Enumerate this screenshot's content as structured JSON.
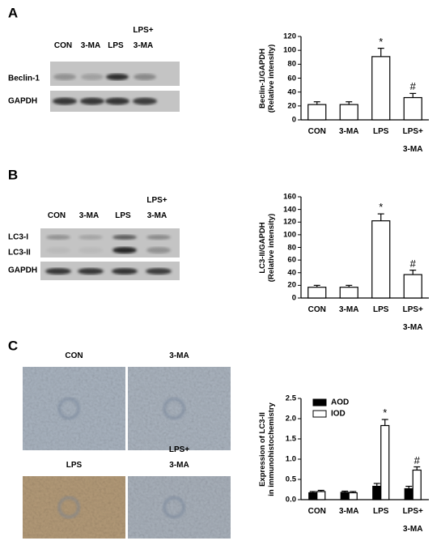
{
  "panels": [
    {
      "label": "A",
      "blot": {
        "lanes": [
          "CON",
          "3-MA",
          "LPS",
          "LPS+\n3-MA"
        ],
        "rows": [
          "Beclin-1",
          "GAPDH"
        ]
      }
    },
    {
      "label": "B",
      "blot": {
        "lanes": [
          "CON",
          "3-MA",
          "LPS",
          "LPS+\n3-MA"
        ],
        "rows": [
          "LC3-I",
          "LC3-II",
          "GAPDH"
        ]
      }
    },
    {
      "label": "C",
      "images": [
        "CON",
        "3-MA",
        "LPS",
        "LPS+\n3-MA"
      ]
    }
  ],
  "chart_data": [
    {
      "type": "bar",
      "y_label": "Beclin-1/GAPDH\n(Relative intensity)",
      "categories": [
        "CON",
        "3-MA",
        "LPS",
        "LPS+\n3-MA"
      ],
      "values": [
        22,
        22,
        91,
        32
      ],
      "errors": [
        4,
        4,
        12,
        6
      ],
      "annotations": [
        null,
        null,
        "*",
        "#"
      ],
      "color": "#ffffff",
      "edge_color": "#000000",
      "ylim": [
        0,
        120
      ],
      "yticks": [
        0,
        20,
        40,
        60,
        80,
        100,
        120
      ],
      "grid": false
    },
    {
      "type": "bar",
      "y_label": "LC3-II/GAPDH\n(Relative intensity)",
      "categories": [
        "CON",
        "3-MA",
        "LPS",
        "LPS+\n3-MA"
      ],
      "values": [
        17,
        17,
        122,
        37
      ],
      "errors": [
        3,
        3,
        11,
        7
      ],
      "annotations": [
        null,
        null,
        "*",
        "#"
      ],
      "color": "#ffffff",
      "edge_color": "#000000",
      "ylim": [
        0,
        160
      ],
      "yticks": [
        0,
        20,
        40,
        60,
        80,
        100,
        120,
        140,
        160
      ],
      "grid": false
    },
    {
      "type": "bar",
      "y_label": "Expression of LC3-II\nin immunohistochemistry",
      "categories": [
        "CON",
        "3-MA",
        "LPS",
        "LPS+\n3-MA"
      ],
      "series": [
        {
          "name": "AOD",
          "color": "#000000",
          "values": [
            0.17,
            0.18,
            0.33,
            0.27
          ],
          "errors": [
            0.03,
            0.03,
            0.07,
            0.06
          ],
          "annotations": [
            null,
            null,
            null,
            null
          ]
        },
        {
          "name": "IOD",
          "color": "#ffffff",
          "values": [
            0.2,
            0.17,
            1.83,
            0.73
          ],
          "errors": [
            0.03,
            0.03,
            0.15,
            0.08
          ],
          "annotations": [
            null,
            null,
            "*",
            "#"
          ]
        }
      ],
      "edge_color": "#000000",
      "legend": "upper left",
      "ylim": [
        0,
        2.5
      ],
      "yticks": [
        {
          "value": 0,
          "label": "0.0"
        },
        0.5,
        {
          "value": 1,
          "label": "1.0"
        },
        1.5,
        {
          "value": 2,
          "label": "2.0"
        },
        2.5
      ],
      "grid": false
    }
  ]
}
